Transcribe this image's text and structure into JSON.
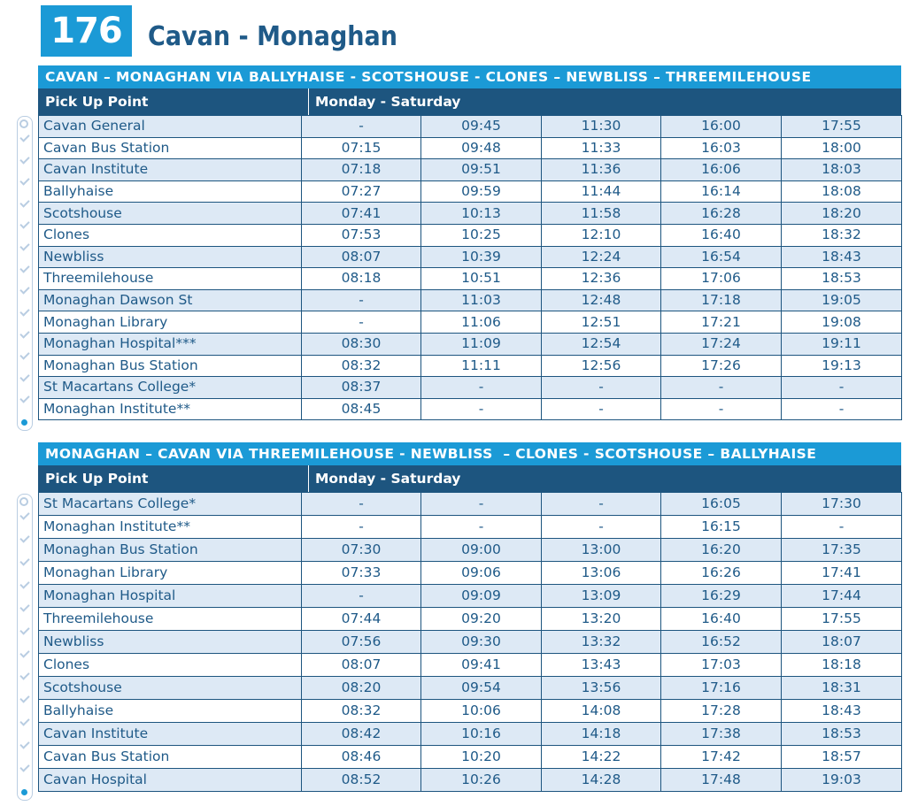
{
  "header": {
    "route_number": "176",
    "route_name": "Cavan - Monaghan"
  },
  "outbound": {
    "banner": "CAVAN – MONAGHAN VIA BALLYHAISE - SCOTSHOUSE - CLONES – NEWBLISS – THREEMILEHOUSE",
    "stop_header": "Pick Up Point",
    "days_header": "Monday - Saturday",
    "rows": [
      {
        "stop": "Cavan General",
        "times": [
          "-",
          "09:45",
          "11:30",
          "16:00",
          "17:55"
        ]
      },
      {
        "stop": "Cavan Bus Station",
        "times": [
          "07:15",
          "09:48",
          "11:33",
          "16:03",
          "18:00"
        ]
      },
      {
        "stop": "Cavan Institute",
        "times": [
          "07:18",
          "09:51",
          "11:36",
          "16:06",
          "18:03"
        ]
      },
      {
        "stop": "Ballyhaise",
        "times": [
          "07:27",
          "09:59",
          "11:44",
          "16:14",
          "18:08"
        ]
      },
      {
        "stop": "Scotshouse",
        "times": [
          "07:41",
          "10:13",
          "11:58",
          "16:28",
          "18:20"
        ]
      },
      {
        "stop": "Clones",
        "times": [
          "07:53",
          "10:25",
          "12:10",
          "16:40",
          "18:32"
        ]
      },
      {
        "stop": "Newbliss",
        "times": [
          "08:07",
          "10:39",
          "12:24",
          "16:54",
          "18:43"
        ]
      },
      {
        "stop": "Threemilehouse",
        "times": [
          "08:18",
          "10:51",
          "12:36",
          "17:06",
          "18:53"
        ]
      },
      {
        "stop": "Monaghan Dawson St",
        "times": [
          "-",
          "11:03",
          "12:48",
          "17:18",
          "19:05"
        ]
      },
      {
        "stop": "Monaghan Library",
        "times": [
          "-",
          "11:06",
          "12:51",
          "17:21",
          "19:08"
        ]
      },
      {
        "stop": "Monaghan Hospital***",
        "times": [
          "08:30",
          "11:09",
          "12:54",
          "17:24",
          "19:11"
        ]
      },
      {
        "stop": "Monaghan Bus Station",
        "times": [
          "08:32",
          "11:11",
          "12:56",
          "17:26",
          "19:13"
        ]
      },
      {
        "stop": "St Macartans College*",
        "times": [
          "08:37",
          "-",
          "-",
          "-",
          "-"
        ]
      },
      {
        "stop": "Monaghan Institute**",
        "times": [
          "08:45",
          "-",
          "-",
          "-",
          "-"
        ]
      }
    ]
  },
  "inbound": {
    "banner": "MONAGHAN – CAVAN VIA THREEMILEHOUSE - NEWBLISS  – CLONES - SCOTSHOUSE – BALLYHAISE",
    "stop_header": "Pick Up Point",
    "days_header": "Monday - Saturday",
    "rows": [
      {
        "stop": "St Macartans College*",
        "times": [
          "-",
          "-",
          "-",
          "16:05",
          "17:30"
        ]
      },
      {
        "stop": "Monaghan Institute**",
        "times": [
          "-",
          "-",
          "-",
          "16:15",
          "-"
        ]
      },
      {
        "stop": "Monaghan Bus Station",
        "times": [
          "07:30",
          "09:00",
          "13:00",
          "16:20",
          "17:35"
        ]
      },
      {
        "stop": "Monaghan Library",
        "times": [
          "07:33",
          "09:06",
          "13:06",
          "16:26",
          "17:41"
        ]
      },
      {
        "stop": "Monaghan Hospital",
        "times": [
          "-",
          "09:09",
          "13:09",
          "16:29",
          "17:44"
        ]
      },
      {
        "stop": "Threemilehouse",
        "times": [
          "07:44",
          "09:20",
          "13:20",
          "16:40",
          "17:55"
        ]
      },
      {
        "stop": "Newbliss",
        "times": [
          "07:56",
          "09:30",
          "13:32",
          "16:52",
          "18:07"
        ]
      },
      {
        "stop": "Clones",
        "times": [
          "08:07",
          "09:41",
          "13:43",
          "17:03",
          "18:18"
        ]
      },
      {
        "stop": "Scotshouse",
        "times": [
          "08:20",
          "09:54",
          "13:56",
          "17:16",
          "18:31"
        ]
      },
      {
        "stop": "Ballyhaise",
        "times": [
          "08:32",
          "10:06",
          "14:08",
          "17:28",
          "18:43"
        ]
      },
      {
        "stop": "Cavan Institute",
        "times": [
          "08:42",
          "10:16",
          "14:18",
          "17:38",
          "18:53"
        ]
      },
      {
        "stop": "Cavan Bus Station",
        "times": [
          "08:46",
          "10:20",
          "14:22",
          "17:42",
          "18:57"
        ]
      },
      {
        "stop": "Cavan Hospital",
        "times": [
          "08:52",
          "10:26",
          "14:28",
          "17:48",
          "19:03"
        ]
      }
    ]
  },
  "colors": {
    "accent_blue": "#1b9ad6",
    "header_navy": "#1d557f",
    "row_tint": "#dde9f5",
    "text_blue": "#1f5a88"
  }
}
